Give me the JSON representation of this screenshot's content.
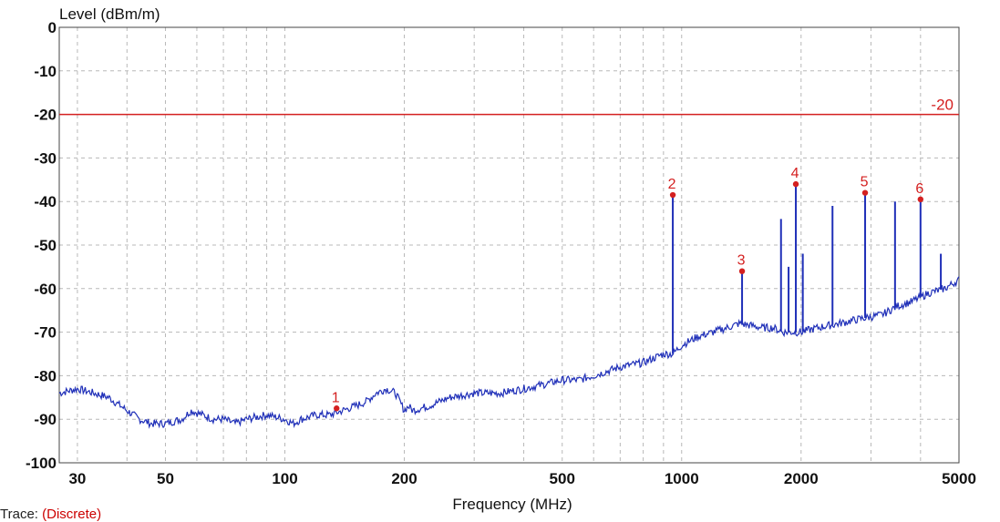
{
  "chart_data": {
    "type": "line",
    "ylabel": "Level (dBm/m)",
    "xlabel": "Frequency (MHz)",
    "x_scale": "log",
    "xlim": [
      27,
      5000
    ],
    "ylim": [
      -100,
      0
    ],
    "y_ticks": [
      0,
      -10,
      -20,
      -30,
      -40,
      -50,
      -60,
      -70,
      -80,
      -90,
      -100
    ],
    "x_ticks": [
      30,
      50,
      100,
      200,
      500,
      1000,
      2000,
      5000
    ],
    "grid": true,
    "limit_line": {
      "value": -20,
      "label": "-20",
      "color": "#d42020"
    },
    "series": [
      {
        "color": "#1f2fb8",
        "x": [
          27,
          30,
          33,
          36,
          40,
          43,
          46,
          50,
          55,
          58,
          62,
          66,
          70,
          75,
          80,
          90,
          100,
          105,
          110,
          120,
          130,
          140,
          150,
          160,
          170,
          180,
          190,
          200,
          205,
          210,
          230,
          260,
          300,
          350,
          400,
          450,
          500,
          550,
          600,
          700,
          800,
          900,
          950,
          1000,
          1100,
          1200,
          1300,
          1400,
          1600,
          1700,
          1800,
          2000,
          2200,
          2500,
          2800,
          3200,
          3500,
          3800,
          4200,
          4600,
          5000
        ],
        "y": [
          -84,
          -83,
          -84,
          -85,
          -88,
          -90,
          -91,
          -91,
          -90,
          -88,
          -89,
          -90,
          -90,
          -91,
          -90,
          -89,
          -90,
          -91,
          -90,
          -89,
          -89,
          -88,
          -87,
          -86,
          -84,
          -83,
          -84,
          -88,
          -87,
          -88,
          -87,
          -85,
          -84,
          -84,
          -83,
          -82,
          -81,
          -81,
          -80,
          -78,
          -77,
          -75,
          -75,
          -73,
          -71,
          -70,
          -69,
          -68,
          -69,
          -69,
          -70,
          -70,
          -69,
          -68,
          -67,
          -66,
          -64,
          -63,
          -61,
          -60,
          -58
        ]
      }
    ],
    "spikes": [
      {
        "x": 950,
        "y": -38
      },
      {
        "x": 1420,
        "y": -56
      },
      {
        "x": 1780,
        "y": -44
      },
      {
        "x": 1860,
        "y": -55
      },
      {
        "x": 1940,
        "y": -36
      },
      {
        "x": 2020,
        "y": -52
      },
      {
        "x": 2400,
        "y": -41
      },
      {
        "x": 2900,
        "y": -38
      },
      {
        "x": 3450,
        "y": -40
      },
      {
        "x": 4000,
        "y": -39
      },
      {
        "x": 4500,
        "y": -52
      }
    ],
    "markers": [
      {
        "label": "1",
        "x": 135,
        "y": -87.5
      },
      {
        "label": "2",
        "x": 950,
        "y": -38.5
      },
      {
        "label": "3",
        "x": 1420,
        "y": -56
      },
      {
        "label": "4",
        "x": 1940,
        "y": -36
      },
      {
        "label": "5",
        "x": 2900,
        "y": -38
      },
      {
        "label": "6",
        "x": 4000,
        "y": -39.5
      }
    ]
  },
  "trace": {
    "label": "Trace:",
    "value": "(Discrete)"
  },
  "colors": {
    "trace": "#1f2fb8",
    "limit": "#d42020",
    "marker": "#d42020",
    "grid": "#b8b8b8"
  }
}
